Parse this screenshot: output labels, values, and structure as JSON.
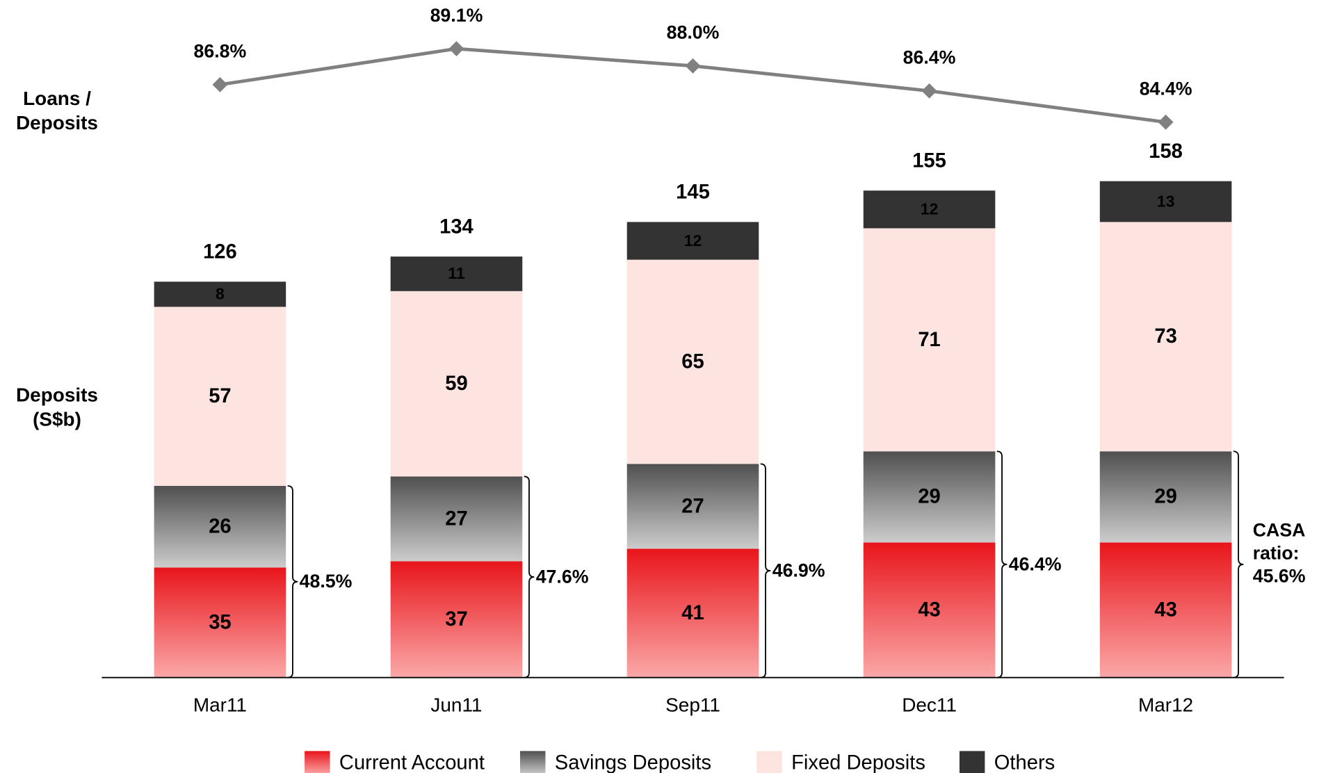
{
  "chart_data": {
    "type": "bar",
    "stacked": true,
    "categories": [
      "Mar11",
      "Jun11",
      "Sep11",
      "Dec11",
      "Mar12"
    ],
    "ylabel": [
      "Deposits",
      "(S$b)"
    ],
    "ylim": [
      0,
      160
    ],
    "series": [
      {
        "name": "Current Account",
        "color": "#e8151b",
        "gradient_to": "#fba8a8",
        "label_color": "#000000",
        "values": [
          35,
          37,
          41,
          43,
          43
        ]
      },
      {
        "name": "Savings Deposits",
        "color": "#505050",
        "gradient_to": "#cccccc",
        "label_color": "#000000",
        "values": [
          26,
          27,
          27,
          29,
          29
        ]
      },
      {
        "name": "Fixed Deposits",
        "color": "#fde4e0",
        "label_color": "#000000",
        "values": [
          57,
          59,
          65,
          71,
          73
        ]
      },
      {
        "name": "Others",
        "color": "#333333",
        "label_color": "#ffffff",
        "values": [
          8,
          11,
          12,
          12,
          13
        ]
      }
    ],
    "totals": [
      126,
      134,
      145,
      155,
      158
    ],
    "line": {
      "label": [
        "Loans /",
        "Deposits"
      ],
      "color": "#808080",
      "values": [
        86.8,
        89.1,
        88.0,
        86.4,
        84.4
      ],
      "value_labels": [
        "86.8%",
        "89.1%",
        "88.0%",
        "86.4%",
        "84.4%"
      ],
      "y2lim": [
        84,
        90
      ]
    },
    "casa": {
      "title": [
        "CASA",
        "ratio:"
      ],
      "values": [
        48.5,
        47.6,
        46.9,
        46.4,
        45.6
      ],
      "value_labels": [
        "48.5%",
        "47.6%",
        "46.9%",
        "46.4%",
        "45.6%"
      ]
    }
  }
}
